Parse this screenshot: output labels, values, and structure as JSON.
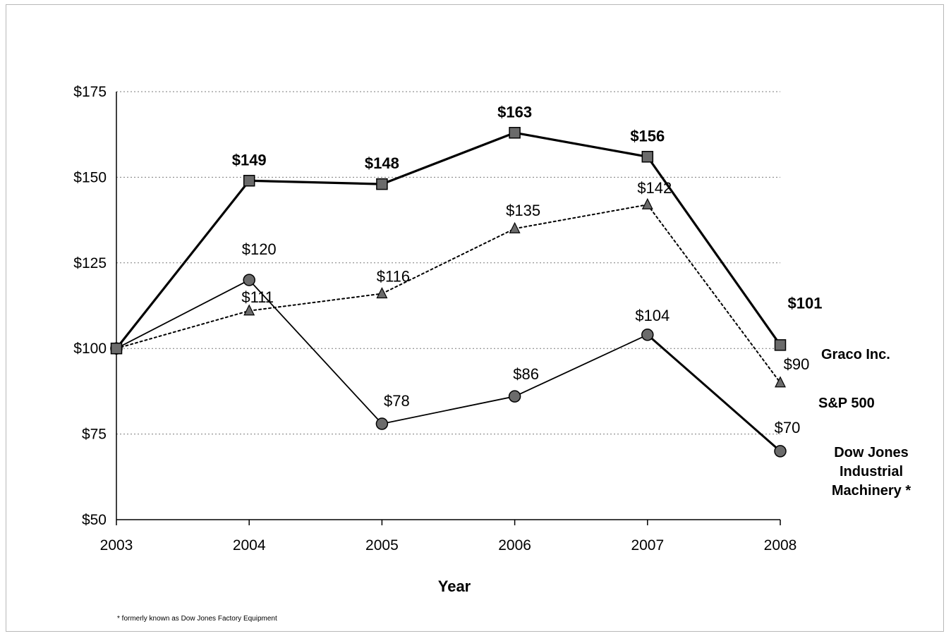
{
  "chart_data": {
    "type": "line",
    "x": [
      "2003",
      "2004",
      "2005",
      "2006",
      "2007",
      "2008"
    ],
    "xlabel": "Year",
    "ylabel": "",
    "ylim": [
      50,
      175
    ],
    "yticks": [
      "$50",
      "$75",
      "$100",
      "$125",
      "$150",
      "$175"
    ],
    "grid": "horizontal dotted",
    "series": [
      {
        "name": "Graco Inc.",
        "values": [
          100,
          149,
          148,
          163,
          156,
          101
        ],
        "labels": [
          "",
          "$149",
          "$148",
          "$163",
          "$156",
          "$101"
        ],
        "marker": "square",
        "line": "thick solid"
      },
      {
        "name": "S&P 500",
        "values": [
          100,
          111,
          116,
          135,
          142,
          90
        ],
        "labels": [
          "",
          "$111",
          "$116",
          "$135",
          "$142",
          "$90"
        ],
        "marker": "triangle",
        "line": "dotted"
      },
      {
        "name": "Dow Jones Industrial Machinery *",
        "legend_lines": [
          "Dow Jones",
          "Industrial",
          "Machinery *"
        ],
        "values": [
          100,
          120,
          78,
          86,
          104,
          70
        ],
        "labels": [
          "",
          "$120",
          "$78",
          "$86",
          "$104",
          "$70"
        ],
        "marker": "circle",
        "line": "solid"
      }
    ],
    "footnote": "* formerly known as Dow Jones Factory Equipment"
  },
  "colors": {
    "marker_fill": "#6b6b6b",
    "line": "#000000",
    "grid": "#7a7a7a"
  }
}
